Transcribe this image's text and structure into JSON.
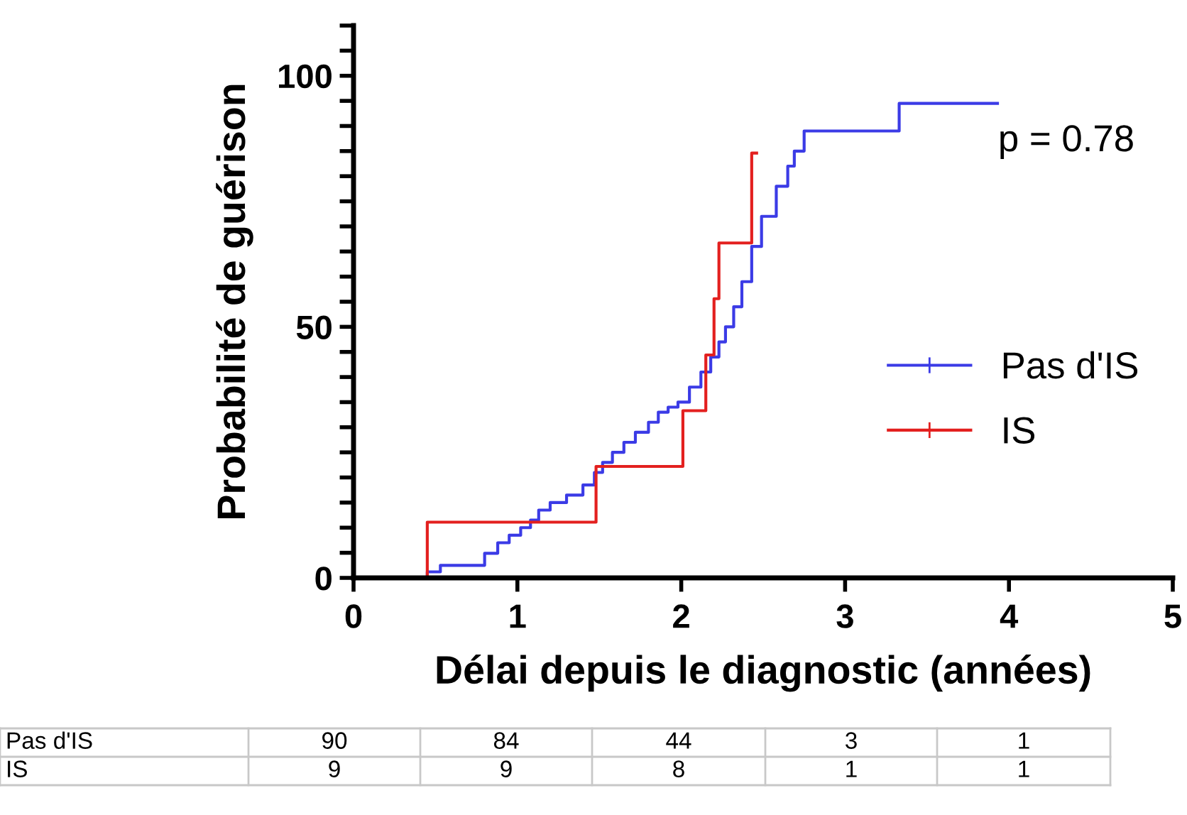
{
  "chart_data": {
    "type": "step",
    "xlabel": "Délai depuis le diagnostic (années)",
    "ylabel": "Probabilité de guérison",
    "xlim": [
      0,
      5
    ],
    "xticks": [
      0,
      1,
      2,
      3,
      4,
      5
    ],
    "ylim": [
      0,
      110
    ],
    "yticks": [
      0,
      {
        "value": 5,
        "label": null
      },
      {
        "value": 10,
        "label": null
      },
      {
        "value": 15,
        "label": null
      },
      {
        "value": 20,
        "label": null
      },
      {
        "value": 25,
        "label": null
      },
      {
        "value": 30,
        "label": null
      },
      {
        "value": 35,
        "label": null
      },
      {
        "value": 40,
        "label": null
      },
      {
        "value": 45,
        "label": null
      },
      50,
      {
        "value": 55,
        "label": null
      },
      {
        "value": 60,
        "label": null
      },
      {
        "value": 65,
        "label": null
      },
      {
        "value": 70,
        "label": null
      },
      {
        "value": 75,
        "label": null
      },
      {
        "value": 80,
        "label": null
      },
      {
        "value": 85,
        "label": null
      },
      {
        "value": 90,
        "label": null
      },
      {
        "value": 95,
        "label": null
      },
      100,
      {
        "value": 105,
        "label": null
      },
      {
        "value": 110,
        "label": null
      }
    ],
    "grid": false,
    "legend": "right",
    "series": [
      {
        "name": "Pas d'IS",
        "color": "#3b3be6",
        "x": [
          0,
          0.45,
          0.53,
          0.8,
          0.88,
          0.95,
          1.02,
          1.08,
          1.13,
          1.2,
          1.3,
          1.4,
          1.47,
          1.52,
          1.58,
          1.65,
          1.72,
          1.8,
          1.86,
          1.92,
          1.98,
          2.05,
          2.12,
          2.18,
          2.23,
          2.27,
          2.32,
          2.37,
          2.43,
          2.49,
          2.58,
          2.65,
          2.69,
          2.75,
          3.33,
          3.93
        ],
        "values": [
          0,
          1.2,
          2.5,
          4.9,
          7,
          8.5,
          10,
          11.5,
          13.5,
          15,
          16.5,
          18.5,
          21,
          23,
          25,
          27,
          29,
          31,
          33,
          34,
          35,
          38,
          41,
          44,
          47,
          50,
          54,
          59,
          66,
          72,
          78,
          82,
          85,
          89,
          94.5,
          94.5
        ]
      },
      {
        "name": "IS",
        "color": "#e3201f",
        "x": [
          0,
          0.45,
          1.48,
          2.01,
          2.15,
          2.2,
          2.23,
          2.43,
          2.46
        ],
        "values": [
          0,
          11.1,
          22.2,
          33.3,
          44.4,
          55.6,
          66.7,
          84.6,
          84.6
        ]
      }
    ],
    "annotations": [
      "p = 0.78",
      "Pas d'IS",
      "90",
      "84",
      "44",
      "3",
      "1",
      "IS",
      "9",
      "9",
      "8",
      "1",
      "1"
    ]
  }
}
